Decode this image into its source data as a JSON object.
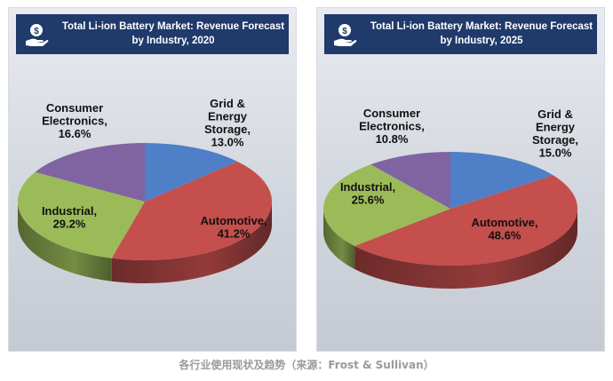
{
  "chart_data": [
    {
      "type": "pie",
      "title": "Total Li-ion Battery Market: Revenue Forecast by Industry, 2020",
      "title_lines": [
        "Total Li-ion Battery Market: Revenue Forecast",
        "by Industry, 2020"
      ],
      "slices": [
        {
          "name": "Grid & Energy Storage",
          "label_lines": [
            "Grid &",
            "Energy",
            "Storage,"
          ],
          "value_text": "13.0%",
          "value": 13.0,
          "color": "#4f7fc7"
        },
        {
          "name": "Automotive",
          "label_lines": [
            "Automotive,"
          ],
          "value_text": "41.2%",
          "value": 41.2,
          "color": "#c44f4d"
        },
        {
          "name": "Industrial",
          "label_lines": [
            "Industrial,"
          ],
          "value_text": "29.2%",
          "value": 29.2,
          "color": "#9bbb59"
        },
        {
          "name": "Consumer Electronics",
          "label_lines": [
            "Consumer",
            "Electronics,"
          ],
          "value_text": "16.6%",
          "value": 16.6,
          "color": "#8064a2"
        }
      ]
    },
    {
      "type": "pie",
      "title": "Total Li-ion Battery Market: Revenue Forecast by Industry, 2025",
      "title_lines": [
        "Total Li-ion Battery Market: Revenue Forecast",
        "by Industry, 2025"
      ],
      "slices": [
        {
          "name": "Grid & Energy Storage",
          "label_lines": [
            "Grid   &",
            "Energy",
            "Storage,"
          ],
          "value_text": "15.0%",
          "value": 15.0,
          "color": "#4f7fc7"
        },
        {
          "name": "Automotive",
          "label_lines": [
            "Automotive,"
          ],
          "value_text": "48.6%",
          "value": 48.6,
          "color": "#c44f4d"
        },
        {
          "name": "Industrial",
          "label_lines": [
            "Industrial,"
          ],
          "value_text": "25.6%",
          "value": 25.6,
          "color": "#9bbb59"
        },
        {
          "name": "Consumer Electronics",
          "label_lines": [
            "Consumer",
            "Electronics,"
          ],
          "value_text": "10.8%",
          "value": 10.8,
          "color": "#8064a2"
        }
      ]
    }
  ],
  "header_icon": "money-hand-icon",
  "caption": "各行业使用现状及趋势（来源：Frost & Sullivan）"
}
